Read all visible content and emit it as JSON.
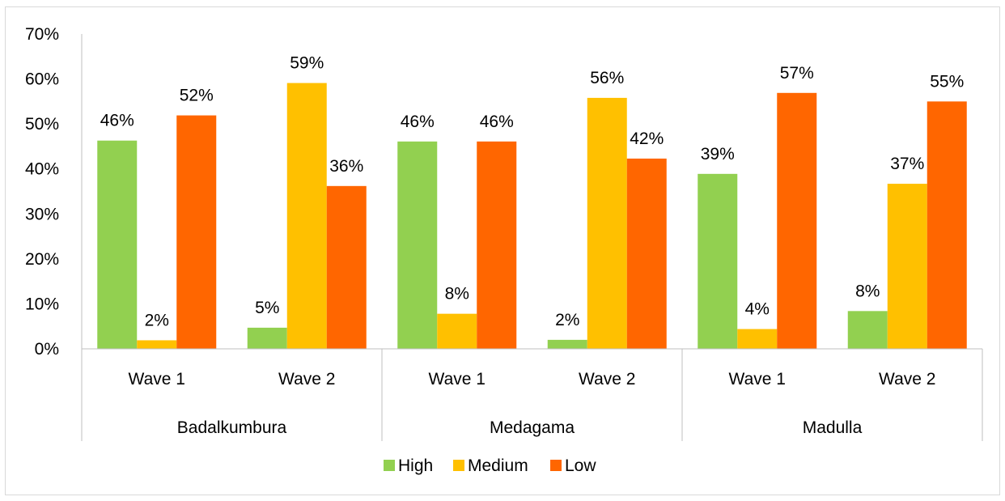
{
  "chart_data": {
    "type": "bar",
    "title": "",
    "xlabel": "",
    "ylabel": "",
    "ylim": [
      0,
      70
    ],
    "y_ticks": [
      "0%",
      "10%",
      "20%",
      "30%",
      "40%",
      "50%",
      "60%",
      "70%"
    ],
    "groups": [
      {
        "name": "Badalkumbura",
        "categories": [
          "Wave 1",
          "Wave 2"
        ]
      },
      {
        "name": "Medagama",
        "categories": [
          "Wave 1",
          "Wave 2"
        ]
      },
      {
        "name": "Madulla",
        "categories": [
          "Wave 1",
          "Wave 2"
        ]
      }
    ],
    "categories": [
      "Badalkumbura Wave 1",
      "Badalkumbura Wave 2",
      "Medagama Wave 1",
      "Medagama Wave 2",
      "Madulla Wave 1",
      "Madulla Wave 2"
    ],
    "series": [
      {
        "name": "High",
        "color": "#92D050",
        "values": [
          46.3,
          4.7,
          46.1,
          2.0,
          38.9,
          8.4
        ],
        "labels": [
          "46%",
          "5%",
          "46%",
          "2%",
          "39%",
          "8%"
        ]
      },
      {
        "name": "Medium",
        "color": "#FFC000",
        "values": [
          1.9,
          59.1,
          7.8,
          55.8,
          4.4,
          36.7
        ],
        "labels": [
          "2%",
          "59%",
          "8%",
          "56%",
          "4%",
          "37%"
        ]
      },
      {
        "name": "Low",
        "color": "#FF6600",
        "values": [
          51.9,
          36.2,
          46.1,
          42.3,
          56.9,
          55.0
        ],
        "labels": [
          "52%",
          "36%",
          "46%",
          "42%",
          "57%",
          "55%"
        ]
      }
    ],
    "grid": false,
    "legend_position": "bottom"
  }
}
